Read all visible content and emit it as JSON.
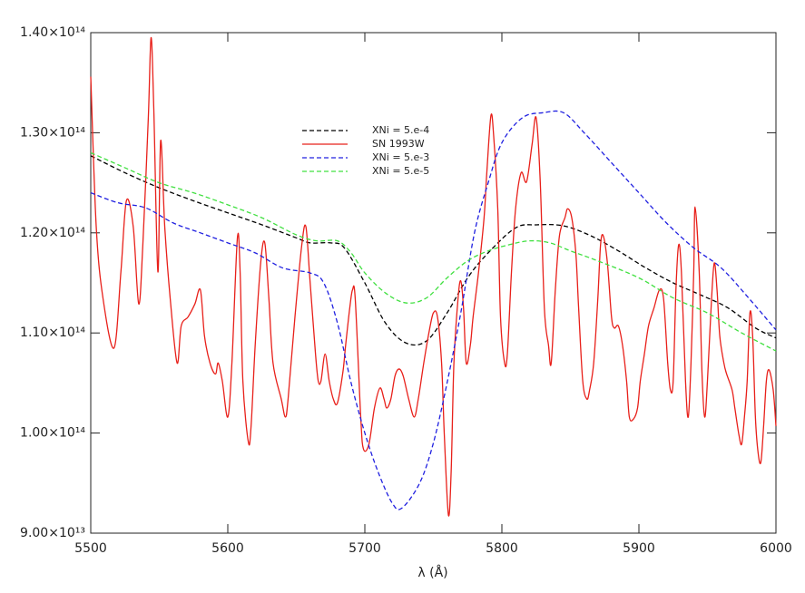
{
  "chart_data": {
    "type": "line",
    "xlabel": "λ (Å)",
    "xlim": [
      5500,
      6000
    ],
    "xticks": [
      5500,
      5600,
      5700,
      5800,
      5900,
      6000
    ],
    "ylim": [
      90000000000000.0,
      140000000000000.0
    ],
    "yticks": [
      {
        "value": 90000000000000.0,
        "label": "9.00×10¹³"
      },
      {
        "value": 100000000000000.0,
        "label": "1.00×10¹⁴"
      },
      {
        "value": 110000000000000.0,
        "label": "1.10×10¹⁴"
      },
      {
        "value": 120000000000000.0,
        "label": "1.20×10¹⁴"
      },
      {
        "value": 130000000000000.0,
        "label": "1.30×10¹⁴"
      },
      {
        "value": 140000000000000.0,
        "label": "1.40×10¹⁴"
      }
    ],
    "series": [
      {
        "name": "XNi = 5.e-4",
        "color": "#000000",
        "dashed": true,
        "x": [
          5500,
          5525,
          5550,
          5575,
          5600,
          5625,
          5650,
          5660,
          5675,
          5685,
          5700,
          5715,
          5730,
          5745,
          5760,
          5775,
          5790,
          5810,
          5825,
          5845,
          5865,
          5885,
          5905,
          5925,
          5945,
          5965,
          5985,
          6000
        ],
        "values": [
          127700000000000.0,
          126000000000000.0,
          124500000000000.0,
          123200000000000.0,
          122000000000000.0,
          120800000000000.0,
          119500000000000.0,
          119000000000000.0,
          119000000000000.0,
          118500000000000.0,
          115000000000000.0,
          111000000000000.0,
          109000000000000.0,
          109200000000000.0,
          112000000000000.0,
          115500000000000.0,
          118000000000000.0,
          120500000000000.0,
          120800000000000.0,
          120700000000000.0,
          119700000000000.0,
          118200000000000.0,
          116500000000000.0,
          115000000000000.0,
          113800000000000.0,
          112500000000000.0,
          110500000000000.0,
          109500000000000.0
        ]
      },
      {
        "name": "SN 1993W",
        "color": "#e8201a",
        "dashed": false,
        "x": [
          5500,
          5504,
          5509,
          5517,
          5522,
          5526,
          5531,
          5535,
          5538,
          5542,
          5544,
          5546,
          5549,
          5551,
          5554,
          5558,
          5563,
          5566,
          5571,
          5576,
          5580,
          5583,
          5587,
          5591,
          5593,
          5596,
          5600,
          5603,
          5607,
          5609,
          5611,
          5615,
          5617,
          5620,
          5624,
          5627,
          5630,
          5633,
          5639,
          5642,
          5644,
          5649,
          5654,
          5657,
          5660,
          5664,
          5666,
          5668,
          5671,
          5674,
          5677,
          5680,
          5684,
          5686,
          5689,
          5691,
          5693,
          5697,
          5699,
          5703,
          5707,
          5711,
          5714,
          5716,
          5719,
          5722,
          5725,
          5728,
          5732,
          5736,
          5739,
          5743,
          5747,
          5750,
          5753,
          5756,
          5758,
          5761,
          5763,
          5765,
          5768,
          5770,
          5772,
          5774,
          5777,
          5779,
          5783,
          5787,
          5789,
          5792,
          5794,
          5797,
          5799,
          5802,
          5804,
          5807,
          5810,
          5814,
          5818,
          5822,
          5825,
          5828,
          5831,
          5834,
          5836,
          5839,
          5842,
          5846,
          5848,
          5851,
          5854,
          5856,
          5859,
          5862,
          5864,
          5867,
          5870,
          5872,
          5874,
          5877,
          5880,
          5882,
          5885,
          5888,
          5891,
          5893,
          5896,
          5899,
          5901,
          5904,
          5907,
          5911,
          5915,
          5918,
          5921,
          5923,
          5925,
          5927,
          5929,
          5931,
          5934,
          5936,
          5938,
          5940,
          5941,
          5944,
          5946,
          5948,
          5950,
          5953,
          5955,
          5957,
          5959,
          5962,
          5964,
          5968,
          5970,
          5973,
          5975,
          5977,
          5979,
          5981,
          5983,
          5985,
          5987,
          5989,
          5991,
          5993,
          5995,
          5998,
          6000
        ],
        "values": [
          135600000000000.0,
          120600000000000.0,
          113400000000000.0,
          108500000000000.0,
          116100000000000.0,
          123200000000000.0,
          120600000000000.0,
          112900000000000.0,
          118800000000000.0,
          131500000000000.0,
          139500000000000.0,
          132400000000000.0,
          116100000000000.0,
          129200000000000.0,
          120600000000000.0,
          113400000000000.0,
          107000000000000.0,
          110700000000000.0,
          111600000000000.0,
          112900000000000.0,
          114300000000000.0,
          109700000000000.0,
          107000000000000.0,
          105900000000000.0,
          107000000000000.0,
          105200000000000.0,
          101600000000000.0,
          107000000000000.0,
          119500000000000.0,
          116100000000000.0,
          105200000000000.0,
          99100000000000.0,
          100700000000000.0,
          108800000000000.0,
          117000000000000.0,
          119000000000000.0,
          113400000000000.0,
          107000000000000.0,
          103400000000000.0,
          101600000000000.0,
          103400000000000.0,
          111600000000000.0,
          118800000000000.0,
          120600000000000.0,
          115200000000000.0,
          107900000000000.0,
          105200000000000.0,
          105200000000000.0,
          107900000000000.0,
          105200000000000.0,
          103400000000000.0,
          103000000000000.0,
          106100000000000.0,
          108800000000000.0,
          112500000000000.0,
          114300000000000.0,
          113400000000000.0,
          101600000000000.0,
          98400000000000.0,
          98900000000000.0,
          102500000000000.0,
          104500000000000.0,
          103400000000000.0,
          102500000000000.0,
          103400000000000.0,
          105700000000000.0,
          106400000000000.0,
          105700000000000.0,
          103400000000000.0,
          101600000000000.0,
          103400000000000.0,
          107000000000000.0,
          110200000000000.0,
          112000000000000.0,
          111600000000000.0,
          107000000000000.0,
          99800000000000.0,
          91800000000000.0,
          96200000000000.0,
          107000000000000.0,
          113400000000000.0,
          115200000000000.0,
          112500000000000.0,
          107000000000000.0,
          108800000000000.0,
          111600000000000.0,
          116100000000000.0,
          121500000000000.0,
          126000000000000.0,
          131700000000000.0,
          129700000000000.0,
          122400000000000.0,
          111600000000000.0,
          107000000000000.0,
          107900000000000.0,
          116100000000000.0,
          122400000000000.0,
          126000000000000.0,
          125100000000000.0,
          128800000000000.0,
          131500000000000.0,
          125100000000000.0,
          112500000000000.0,
          108800000000000.0,
          107000000000000.0,
          114300000000000.0,
          119700000000000.0,
          121500000000000.0,
          122400000000000.0,
          121500000000000.0,
          117900000000000.0,
          112500000000000.0,
          105200000000000.0,
          103400000000000.0,
          104300000000000.0,
          107000000000000.0,
          113400000000000.0,
          118800000000000.0,
          119700000000000.0,
          117000000000000.0,
          111600000000000.0,
          110500000000000.0,
          110700000000000.0,
          108800000000000.0,
          105200000000000.0,
          101600000000000.0,
          101400000000000.0,
          102500000000000.0,
          105200000000000.0,
          107900000000000.0,
          110700000000000.0,
          112500000000000.0,
          114300000000000.0,
          113400000000000.0,
          107000000000000.0,
          104300000000000.0,
          105200000000000.0,
          114300000000000.0,
          118800000000000.0,
          116100000000000.0,
          105200000000000.0,
          101600000000000.0,
          107000000000000.0,
          116100000000000.0,
          122600000000000.0,
          116100000000000.0,
          106100000000000.0,
          101600000000000.0,
          105200000000000.0,
          113400000000000.0,
          117000000000000.0,
          114300000000000.0,
          109700000000000.0,
          107000000000000.0,
          105900000000000.0,
          104300000000000.0,
          102500000000000.0,
          99800000000000.0,
          98900000000000.0,
          101600000000000.0,
          105200000000000.0,
          112000000000000.0,
          109700000000000.0,
          101600000000000.0,
          98000000000000.0,
          97100000000000.0,
          100700000000000.0,
          105200000000000.0,
          106300000000000.0,
          104300000000000.0,
          100700000000000.0
        ]
      },
      {
        "name": "XNi = 5.e-3",
        "color": "#2020e0",
        "dashed": true,
        "x": [
          5500,
          5520,
          5540,
          5560,
          5580,
          5600,
          5620,
          5640,
          5660,
          5670,
          5680,
          5690,
          5700,
          5710,
          5720,
          5727,
          5740,
          5750,
          5760,
          5770,
          5780,
          5790,
          5800,
          5815,
          5830,
          5845,
          5860,
          5880,
          5900,
          5920,
          5940,
          5960,
          5980,
          6000
        ],
        "values": [
          124000000000000.0,
          123000000000000.0,
          122500000000000.0,
          121000000000000.0,
          120000000000000.0,
          119000000000000.0,
          118000000000000.0,
          116500000000000.0,
          116000000000000.0,
          115000000000000.0,
          111000000000000.0,
          105000000000000.0,
          100000000000000.0,
          96000000000000.0,
          93000000000000.0,
          92500000000000.0,
          95000000000000.0,
          99000000000000.0,
          105000000000000.0,
          112000000000000.0,
          120000000000000.0,
          125000000000000.0,
          129000000000000.0,
          131500000000000.0,
          132000000000000.0,
          132000000000000.0,
          130000000000000.0,
          127000000000000.0,
          124000000000000.0,
          121000000000000.0,
          118500000000000.0,
          116500000000000.0,
          113500000000000.0,
          110300000000000.0
        ]
      },
      {
        "name": "XNi = 5.e-5",
        "color": "#40e040",
        "dashed": true,
        "x": [
          5500,
          5525,
          5550,
          5575,
          5600,
          5625,
          5650,
          5665,
          5680,
          5690,
          5700,
          5715,
          5730,
          5745,
          5760,
          5775,
          5790,
          5805,
          5820,
          5835,
          5850,
          5870,
          5900,
          5925,
          5950,
          5975,
          6000
        ],
        "values": [
          128000000000000.0,
          126500000000000.0,
          125000000000000.0,
          124000000000000.0,
          122800000000000.0,
          121500000000000.0,
          119800000000000.0,
          119200000000000.0,
          119200000000000.0,
          118000000000000.0,
          116000000000000.0,
          114000000000000.0,
          113000000000000.0,
          113500000000000.0,
          115500000000000.0,
          117200000000000.0,
          118200000000000.0,
          118800000000000.0,
          119200000000000.0,
          119000000000000.0,
          118200000000000.0,
          117200000000000.0,
          115500000000000.0,
          113500000000000.0,
          112000000000000.0,
          110000000000000.0,
          108200000000000.0
        ]
      }
    ]
  }
}
